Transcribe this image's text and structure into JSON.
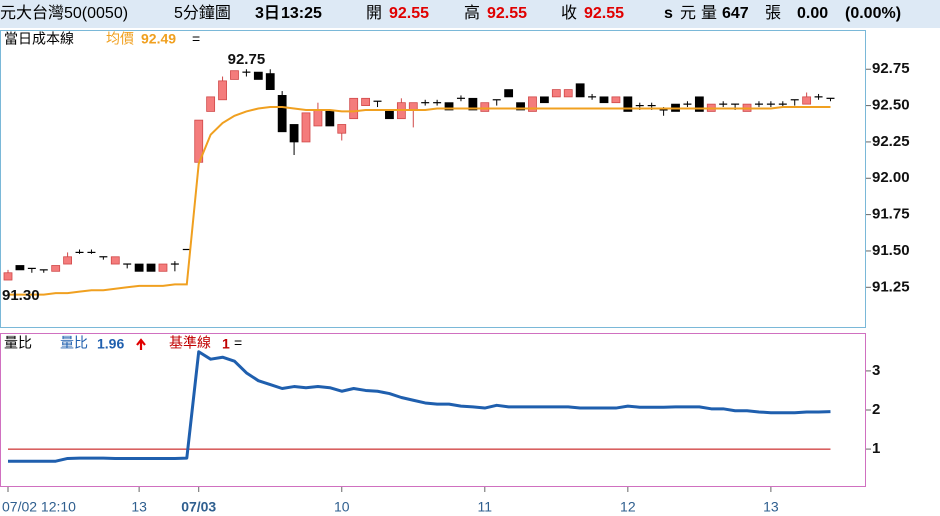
{
  "header": {
    "name": "元大台灣50(0050)",
    "chart": "5分鐘圖",
    "date": "3日",
    "time": "13:25",
    "open_label": "開",
    "open": "92.55",
    "high_label": "高",
    "high": "92.55",
    "close_label": "收",
    "close": "92.55",
    "s": "s",
    "unit": "元",
    "volume_label": "量",
    "volume": "647",
    "volume_unit": "張",
    "change": "0.00",
    "change_pct": "(0.00%)"
  },
  "chart_data": [
    {
      "type": "candlestick",
      "title": "當日成本線",
      "open": [
        91.3,
        91.4,
        91.38,
        91.37,
        91.36,
        91.41,
        91.49,
        91.49,
        91.46,
        91.41,
        91.41,
        91.41,
        91.41,
        91.36,
        91.41,
        91.51,
        92.11,
        92.46,
        92.54,
        92.68,
        92.73,
        92.73,
        92.72,
        92.57,
        92.37,
        92.25,
        92.36,
        92.46,
        92.31,
        92.41,
        92.5,
        92.53,
        92.46,
        92.41,
        92.47,
        92.52,
        92.52,
        92.52,
        92.55,
        92.55,
        92.46,
        92.54,
        92.61,
        92.52,
        92.46,
        92.56,
        92.56,
        92.56,
        92.65,
        92.56,
        92.56,
        92.52,
        92.56,
        92.5,
        92.5,
        92.47,
        92.51,
        92.51,
        92.56,
        92.46,
        92.51,
        92.51,
        92.46,
        92.51,
        92.51,
        92.51,
        92.54,
        92.51,
        92.56,
        92.55
      ],
      "high": [
        91.37,
        91.4,
        91.38,
        91.37,
        91.4,
        91.49,
        91.51,
        91.51,
        91.46,
        91.46,
        91.41,
        91.41,
        91.41,
        91.41,
        91.43,
        91.51,
        92.4,
        92.56,
        92.7,
        92.74,
        92.75,
        92.73,
        92.75,
        92.6,
        92.37,
        92.45,
        92.52,
        92.46,
        92.37,
        92.55,
        92.55,
        92.53,
        92.46,
        92.55,
        92.52,
        92.54,
        92.54,
        92.52,
        92.57,
        92.55,
        92.52,
        92.54,
        92.61,
        92.52,
        92.56,
        92.56,
        92.61,
        92.61,
        92.65,
        92.58,
        92.56,
        92.56,
        92.56,
        92.52,
        92.52,
        92.49,
        92.51,
        92.53,
        92.56,
        92.51,
        92.53,
        92.51,
        92.51,
        92.53,
        92.53,
        92.53,
        92.54,
        92.59,
        92.58,
        92.55
      ],
      "low": [
        91.3,
        91.37,
        91.35,
        91.35,
        91.36,
        91.41,
        91.48,
        91.48,
        91.44,
        91.41,
        91.38,
        91.36,
        91.36,
        91.36,
        91.36,
        91.51,
        92.11,
        92.46,
        92.54,
        92.68,
        92.7,
        92.68,
        92.61,
        92.32,
        92.16,
        92.25,
        92.36,
        92.36,
        92.26,
        92.41,
        92.5,
        92.49,
        92.41,
        92.41,
        92.35,
        92.5,
        92.5,
        92.47,
        92.53,
        92.47,
        92.46,
        92.5,
        92.56,
        92.47,
        92.46,
        92.52,
        92.56,
        92.56,
        92.56,
        92.54,
        92.52,
        92.52,
        92.46,
        92.47,
        92.47,
        92.43,
        92.46,
        92.49,
        92.46,
        92.46,
        92.49,
        92.47,
        92.46,
        92.49,
        92.49,
        92.49,
        92.5,
        92.51,
        92.54,
        92.53
      ],
      "close": [
        91.35,
        91.37,
        91.38,
        91.37,
        91.4,
        91.46,
        91.49,
        91.49,
        91.46,
        91.46,
        91.41,
        91.36,
        91.36,
        91.41,
        91.41,
        91.51,
        92.4,
        92.56,
        92.67,
        92.74,
        92.73,
        92.68,
        92.61,
        92.32,
        92.25,
        92.45,
        92.47,
        92.36,
        92.37,
        92.55,
        92.55,
        92.53,
        92.41,
        92.52,
        92.52,
        92.52,
        92.52,
        92.47,
        92.55,
        92.47,
        92.52,
        92.54,
        92.56,
        92.47,
        92.56,
        92.52,
        92.61,
        92.61,
        92.56,
        92.56,
        92.52,
        92.56,
        92.46,
        92.5,
        92.5,
        92.47,
        92.46,
        92.51,
        92.46,
        92.51,
        92.51,
        92.51,
        92.51,
        92.51,
        92.51,
        92.51,
        92.54,
        92.56,
        92.56,
        92.55
      ],
      "up_color": "#f47c7c",
      "down_color": "#000000",
      "average": {
        "name": "均價",
        "color": "#f0a020",
        "values": [
          91.2,
          91.2,
          91.2,
          91.2,
          91.21,
          91.21,
          91.22,
          91.23,
          91.23,
          91.24,
          91.25,
          91.26,
          91.26,
          91.26,
          91.27,
          91.27,
          92.1,
          92.3,
          92.38,
          92.43,
          92.46,
          92.48,
          92.49,
          92.49,
          92.48,
          92.47,
          92.47,
          92.47,
          92.46,
          92.46,
          92.47,
          92.47,
          92.47,
          92.47,
          92.47,
          92.47,
          92.48,
          92.48,
          92.48,
          92.48,
          92.48,
          92.48,
          92.48,
          92.48,
          92.48,
          92.48,
          92.48,
          92.48,
          92.48,
          92.48,
          92.48,
          92.48,
          92.48,
          92.48,
          92.48,
          92.48,
          92.48,
          92.48,
          92.48,
          92.48,
          92.48,
          92.48,
          92.48,
          92.48,
          92.48,
          92.49,
          92.49,
          92.49,
          92.49,
          92.49
        ]
      },
      "legend_suffix": "=",
      "annotations": [
        "92.75",
        "91.30"
      ],
      "ylim": [
        90.97,
        93.02
      ],
      "yticks": [
        {
          "value": 91.25,
          "label": "91.25"
        },
        {
          "value": 91.5,
          "label": "91.50"
        },
        {
          "value": 91.75,
          "label": "91.75"
        },
        {
          "value": 92,
          "label": "92.00"
        },
        {
          "value": 92.25,
          "label": "92.25"
        },
        {
          "value": 92.5,
          "label": "92.50"
        },
        {
          "value": 92.75,
          "label": "92.75"
        }
      ]
    },
    {
      "type": "line",
      "title": "量比",
      "categories": [
        "07/02 12:10",
        null,
        null,
        null,
        null,
        null,
        null,
        null,
        null,
        null,
        null,
        "13",
        null,
        null,
        null,
        null,
        "07/03",
        null,
        null,
        null,
        null,
        null,
        null,
        null,
        null,
        null,
        null,
        null,
        "10",
        null,
        null,
        null,
        null,
        null,
        null,
        null,
        null,
        null,
        null,
        null,
        "11",
        null,
        null,
        null,
        null,
        null,
        null,
        null,
        null,
        null,
        null,
        null,
        "12",
        null,
        null,
        null,
        null,
        null,
        null,
        null,
        null,
        null,
        null,
        null,
        "13",
        null,
        null,
        null,
        null,
        null
      ],
      "series": [
        {
          "name": "量比",
          "color": "#1f5fae",
          "values": [
            0.69,
            0.69,
            0.69,
            0.69,
            0.69,
            0.76,
            0.77,
            0.77,
            0.77,
            0.76,
            0.76,
            0.76,
            0.76,
            0.76,
            0.76,
            0.77,
            3.49,
            3.3,
            3.35,
            3.25,
            2.95,
            2.75,
            2.65,
            2.55,
            2.6,
            2.57,
            2.6,
            2.57,
            2.48,
            2.55,
            2.5,
            2.48,
            2.42,
            2.32,
            2.25,
            2.18,
            2.15,
            2.15,
            2.1,
            2.08,
            2.05,
            2.12,
            2.08,
            2.08,
            2.08,
            2.08,
            2.08,
            2.08,
            2.05,
            2.05,
            2.05,
            2.05,
            2.1,
            2.07,
            2.07,
            2.07,
            2.08,
            2.08,
            2.08,
            2.03,
            2.03,
            1.98,
            1.98,
            1.95,
            1.93,
            1.93,
            1.93,
            1.95,
            1.95,
            1.96
          ]
        }
      ],
      "baseline": {
        "name": "基準線",
        "value": 1,
        "color": "#c00000"
      },
      "legend_suffix": "=",
      "ylim": [
        0.03,
        3.97
      ],
      "yticks": [
        1,
        2,
        3
      ]
    }
  ]
}
